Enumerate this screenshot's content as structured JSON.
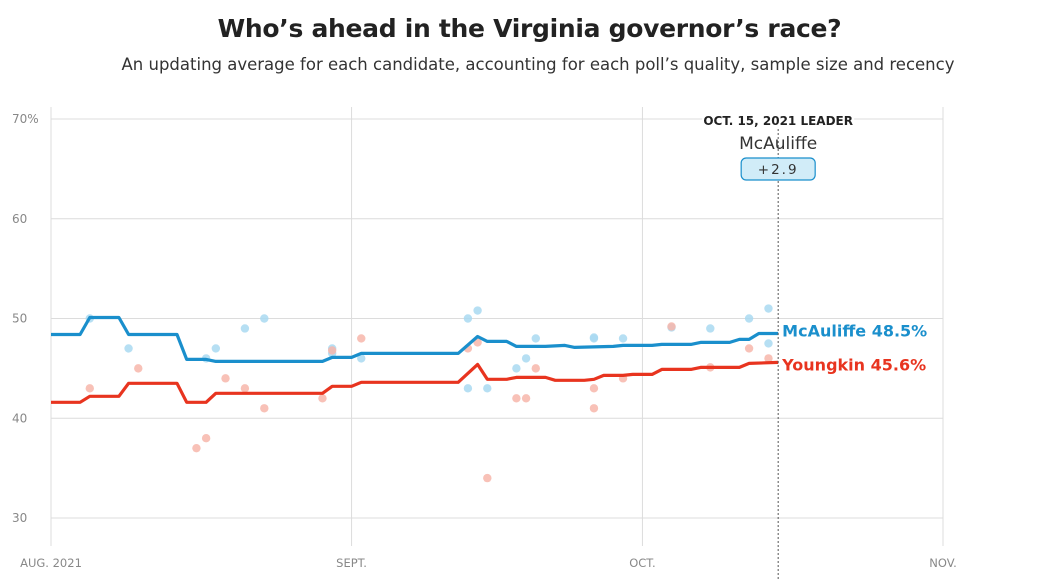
{
  "colors": {
    "mcauliffe": "#1a8fcc",
    "youngkin": "#e8341f",
    "mcauliffe_poll": "#a9d9f1",
    "youngkin_poll": "#f7b6aa",
    "overlap_poll": "#c98a8e",
    "badge_bg": "#d1ecf8"
  },
  "chart_data": {
    "type": "line",
    "title": "Who’s ahead in the Virginia governor’s race?",
    "subtitle": "An updating average for each candidate, accounting for each poll’s quality, sample size and recency",
    "xlim": [
      "2021-08-01",
      "2021-11-01"
    ],
    "ylim": [
      30,
      70
    ],
    "y_ticks": [
      {
        "value": 30,
        "label": "30"
      },
      {
        "value": 40,
        "label": "40"
      },
      {
        "value": 50,
        "label": "50"
      },
      {
        "value": 60,
        "label": "60"
      },
      {
        "value": 70,
        "label": "70%"
      }
    ],
    "x_ticks": [
      {
        "date": "2021-08-01",
        "label": "AUG. 2021"
      },
      {
        "date": "2021-09-01",
        "label": "SEPT."
      },
      {
        "date": "2021-10-01",
        "label": "OCT."
      },
      {
        "date": "2021-11-01",
        "label": "NOV."
      }
    ],
    "grid": true,
    "series": [
      {
        "name": "McAuliffe",
        "end_label": "McAuliffe 48.5%",
        "points": [
          [
            "2021-08-01",
            48.4
          ],
          [
            "2021-08-04",
            48.4
          ],
          [
            "2021-08-05",
            50.1
          ],
          [
            "2021-08-08",
            50.1
          ],
          [
            "2021-08-09",
            48.4
          ],
          [
            "2021-08-14",
            48.4
          ],
          [
            "2021-08-15",
            45.9
          ],
          [
            "2021-08-17",
            45.9
          ],
          [
            "2021-08-18",
            45.7
          ],
          [
            "2021-08-29",
            45.7
          ],
          [
            "2021-08-30",
            46.1
          ],
          [
            "2021-09-01",
            46.1
          ],
          [
            "2021-09-02",
            46.5
          ],
          [
            "2021-09-12",
            46.5
          ],
          [
            "2021-09-14",
            48.2
          ],
          [
            "2021-09-15",
            47.7
          ],
          [
            "2021-09-17",
            47.7
          ],
          [
            "2021-09-18",
            47.2
          ],
          [
            "2021-09-21",
            47.2
          ],
          [
            "2021-09-23",
            47.3
          ],
          [
            "2021-09-24",
            47.1
          ],
          [
            "2021-09-28",
            47.2
          ],
          [
            "2021-09-29",
            47.3
          ],
          [
            "2021-10-02",
            47.3
          ],
          [
            "2021-10-03",
            47.4
          ],
          [
            "2021-10-06",
            47.4
          ],
          [
            "2021-10-07",
            47.6
          ],
          [
            "2021-10-10",
            47.6
          ],
          [
            "2021-10-11",
            47.9
          ],
          [
            "2021-10-12",
            47.9
          ],
          [
            "2021-10-13",
            48.5
          ],
          [
            "2021-10-15",
            48.5
          ]
        ],
        "polls": [
          [
            "2021-08-05",
            50.0
          ],
          [
            "2021-08-09",
            47.0
          ],
          [
            "2021-08-17",
            46.0
          ],
          [
            "2021-08-18",
            47.0
          ],
          [
            "2021-08-21",
            49.0
          ],
          [
            "2021-08-23",
            50.0
          ],
          [
            "2021-08-30",
            47.0
          ],
          [
            "2021-08-30",
            46.5
          ],
          [
            "2021-09-02",
            46.0
          ],
          [
            "2021-09-13",
            50.0
          ],
          [
            "2021-09-14",
            50.8
          ],
          [
            "2021-09-13",
            43.0
          ],
          [
            "2021-09-15",
            43.0
          ],
          [
            "2021-09-18",
            45.0
          ],
          [
            "2021-09-19",
            46.0
          ],
          [
            "2021-09-20",
            48.0
          ],
          [
            "2021-09-26",
            48.0
          ],
          [
            "2021-09-26",
            48.1
          ],
          [
            "2021-09-29",
            48.0
          ],
          [
            "2021-10-04",
            49.1
          ],
          [
            "2021-10-08",
            49.0
          ],
          [
            "2021-10-12",
            50.0
          ],
          [
            "2021-10-14",
            51.0
          ],
          [
            "2021-10-14",
            47.5
          ]
        ]
      },
      {
        "name": "Youngkin",
        "end_label": "Youngkin 45.6%",
        "points": [
          [
            "2021-08-01",
            41.6
          ],
          [
            "2021-08-04",
            41.6
          ],
          [
            "2021-08-05",
            42.2
          ],
          [
            "2021-08-08",
            42.2
          ],
          [
            "2021-08-09",
            43.5
          ],
          [
            "2021-08-14",
            43.5
          ],
          [
            "2021-08-15",
            41.6
          ],
          [
            "2021-08-17",
            41.6
          ],
          [
            "2021-08-18",
            42.5
          ],
          [
            "2021-08-29",
            42.5
          ],
          [
            "2021-08-30",
            43.2
          ],
          [
            "2021-09-01",
            43.2
          ],
          [
            "2021-09-02",
            43.6
          ],
          [
            "2021-09-12",
            43.6
          ],
          [
            "2021-09-14",
            45.4
          ],
          [
            "2021-09-15",
            43.9
          ],
          [
            "2021-09-17",
            43.9
          ],
          [
            "2021-09-18",
            44.1
          ],
          [
            "2021-09-21",
            44.1
          ],
          [
            "2021-09-22",
            43.8
          ],
          [
            "2021-09-25",
            43.8
          ],
          [
            "2021-09-26",
            43.9
          ],
          [
            "2021-09-27",
            44.3
          ],
          [
            "2021-09-29",
            44.3
          ],
          [
            "2021-09-30",
            44.4
          ],
          [
            "2021-10-02",
            44.4
          ],
          [
            "2021-10-03",
            44.9
          ],
          [
            "2021-10-06",
            44.9
          ],
          [
            "2021-10-07",
            45.1
          ],
          [
            "2021-10-11",
            45.1
          ],
          [
            "2021-10-12",
            45.5
          ],
          [
            "2021-10-15",
            45.6
          ]
        ],
        "polls": [
          [
            "2021-08-05",
            43.0
          ],
          [
            "2021-08-10",
            45.0
          ],
          [
            "2021-08-16",
            37.0
          ],
          [
            "2021-08-17",
            38.0
          ],
          [
            "2021-08-19",
            44.0
          ],
          [
            "2021-08-21",
            43.0
          ],
          [
            "2021-08-23",
            41.0
          ],
          [
            "2021-08-29",
            42.0
          ],
          [
            "2021-08-30",
            46.8
          ],
          [
            "2021-09-02",
            48.0
          ],
          [
            "2021-09-13",
            47.0
          ],
          [
            "2021-09-14",
            47.6
          ],
          [
            "2021-09-15",
            34.0
          ],
          [
            "2021-09-18",
            42.0
          ],
          [
            "2021-09-19",
            42.0
          ],
          [
            "2021-09-20",
            45.0
          ],
          [
            "2021-09-26",
            43.0
          ],
          [
            "2021-09-26",
            41.0
          ],
          [
            "2021-09-29",
            44.0
          ],
          [
            "2021-10-04",
            49.2
          ],
          [
            "2021-10-08",
            45.1
          ],
          [
            "2021-10-12",
            47.0
          ],
          [
            "2021-10-14",
            46.0
          ]
        ]
      }
    ],
    "annotation": {
      "date": "2021-10-15",
      "heading": "OCT. 15, 2021 LEADER",
      "leader": "McAuliffe",
      "margin": "+2.9"
    }
  }
}
